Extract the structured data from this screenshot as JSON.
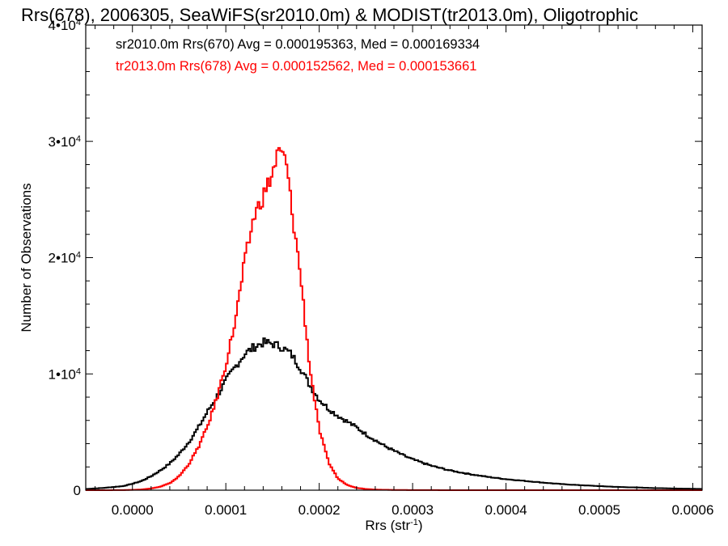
{
  "chart_data": {
    "type": "line",
    "title": "Rrs(678), 2006305, SeaWiFS(sr2010.0m) & MODIST(tr2013.0m), Oligotrophic",
    "xlabel": "Rrs (str",
    "xlabel_sup": "-1",
    "xlabel_suffix": ")",
    "ylabel": "Number of Observations",
    "xlim": [
      -5e-05,
      0.00061
    ],
    "ylim": [
      0,
      40000
    ],
    "x_ticks": [
      0.0,
      0.0001,
      0.0002,
      0.0003,
      0.0004,
      0.0005,
      0.0006
    ],
    "x_tick_labels": [
      "0.0000",
      "0.0001",
      "0.0002",
      "0.0003",
      "0.0004",
      "0.0005",
      "0.0006"
    ],
    "y_ticks": [
      {
        "value": 0,
        "base": "0",
        "exp": ""
      },
      {
        "value": 10000,
        "base": "1•10",
        "exp": "4"
      },
      {
        "value": 20000,
        "base": "2•10",
        "exp": "4"
      },
      {
        "value": 30000,
        "base": "3•10",
        "exp": "4"
      },
      {
        "value": 40000,
        "base": "4•10",
        "exp": "4"
      }
    ],
    "grid": false,
    "legend_position": "top-left",
    "series": [
      {
        "name": "sr2010.0m Rrs(670) Avg = 0.000195363, Med = 0.000169334",
        "color": "#000000",
        "step": "mid",
        "x": [
          -5e-05,
          -3e-05,
          -1e-05,
          0.0,
          1e-05,
          2e-05,
          3e-05,
          4e-05,
          5e-05,
          6e-05,
          7e-05,
          8e-05,
          9e-05,
          0.0001,
          0.00011,
          0.00012,
          0.00013,
          0.00014,
          0.00015,
          0.00016,
          0.00017,
          0.00018,
          0.00019,
          0.0002,
          0.00021,
          0.00022,
          0.00023,
          0.00024,
          0.00025,
          0.00026,
          0.00027,
          0.00028,
          0.00029,
          0.0003,
          0.00032,
          0.00034,
          0.00036,
          0.00038,
          0.0004,
          0.00042,
          0.00044,
          0.00046,
          0.00048,
          0.0005,
          0.00052,
          0.00054,
          0.00056,
          0.00058,
          0.0006,
          0.00061
        ],
        "y": [
          100,
          200,
          350,
          550,
          800,
          1200,
          1700,
          2300,
          3100,
          4100,
          5300,
          6700,
          8000,
          9400,
          10600,
          11700,
          12300,
          12700,
          12600,
          12300,
          11700,
          10500,
          9000,
          7800,
          7000,
          6400,
          5900,
          5400,
          4800,
          4300,
          3800,
          3400,
          3000,
          2650,
          2100,
          1700,
          1400,
          1150,
          950,
          800,
          650,
          520,
          430,
          350,
          280,
          230,
          180,
          150,
          120,
          110
        ]
      },
      {
        "name": "tr2013.0m Rrs(678) Avg = 0.000152562, Med = 0.000153661",
        "color": "#ff0000",
        "step": "mid",
        "x": [
          -5e-05,
          -3e-05,
          -1e-05,
          0.0,
          1e-05,
          2e-05,
          3e-05,
          4e-05,
          5e-05,
          6e-05,
          7e-05,
          8e-05,
          9e-05,
          0.0001,
          0.00011,
          0.00012,
          0.00013,
          0.00014,
          0.00015,
          0.000155,
          0.00016,
          0.000165,
          0.00017,
          0.00018,
          0.00019,
          0.0002,
          0.00021,
          0.00022,
          0.00023,
          0.00024,
          0.00025,
          0.00026,
          0.00028,
          0.0003,
          0.00035,
          0.0004,
          0.0005,
          0.0006,
          0.00061
        ],
        "y": [
          0,
          0,
          10,
          30,
          60,
          150,
          300,
          600,
          1200,
          2200,
          3600,
          5400,
          7800,
          10800,
          14500,
          19500,
          23500,
          25300,
          27200,
          28800,
          29000,
          28000,
          24500,
          18500,
          10500,
          5200,
          2400,
          1000,
          450,
          200,
          100,
          50,
          20,
          10,
          0,
          0,
          0,
          0,
          0
        ]
      }
    ]
  }
}
